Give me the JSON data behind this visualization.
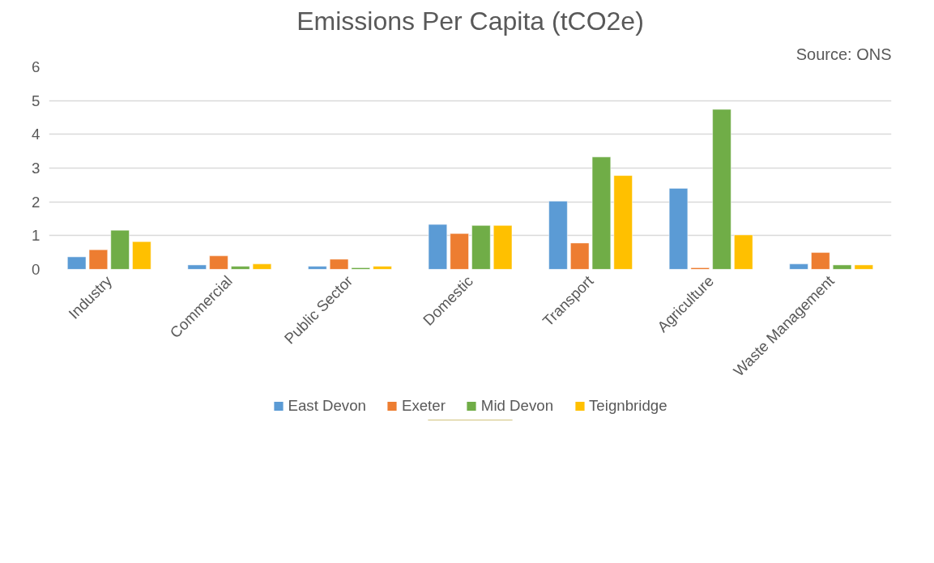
{
  "chart_data": {
    "type": "bar",
    "title": "Emissions Per Capita (tCO2e)",
    "annotations": [
      "Source: ONS"
    ],
    "categories": [
      "Industry",
      "Commercial",
      "Public Sector",
      "Domestic",
      "Transport",
      "Agriculture",
      "Waste Management"
    ],
    "series": [
      {
        "name": "East Devon",
        "color": "#5b9bd5",
        "values": [
          0.37,
          0.13,
          0.09,
          1.33,
          2.02,
          2.4,
          0.16
        ]
      },
      {
        "name": "Exeter",
        "color": "#ed7d31",
        "values": [
          0.58,
          0.4,
          0.3,
          1.06,
          0.78,
          0.05,
          0.5
        ]
      },
      {
        "name": "Mid Devon",
        "color": "#70ad47",
        "values": [
          1.16,
          0.09,
          0.05,
          1.3,
          3.33,
          4.74,
          0.13
        ]
      },
      {
        "name": "Teignbridge",
        "color": "#ffc000",
        "values": [
          0.82,
          0.16,
          0.09,
          1.3,
          2.78,
          1.02,
          0.13
        ]
      }
    ],
    "ylim": [
      0,
      6
    ],
    "yticks": [
      0,
      1,
      2,
      3,
      4,
      5,
      6
    ],
    "grid": "y",
    "legend": "bottom"
  }
}
